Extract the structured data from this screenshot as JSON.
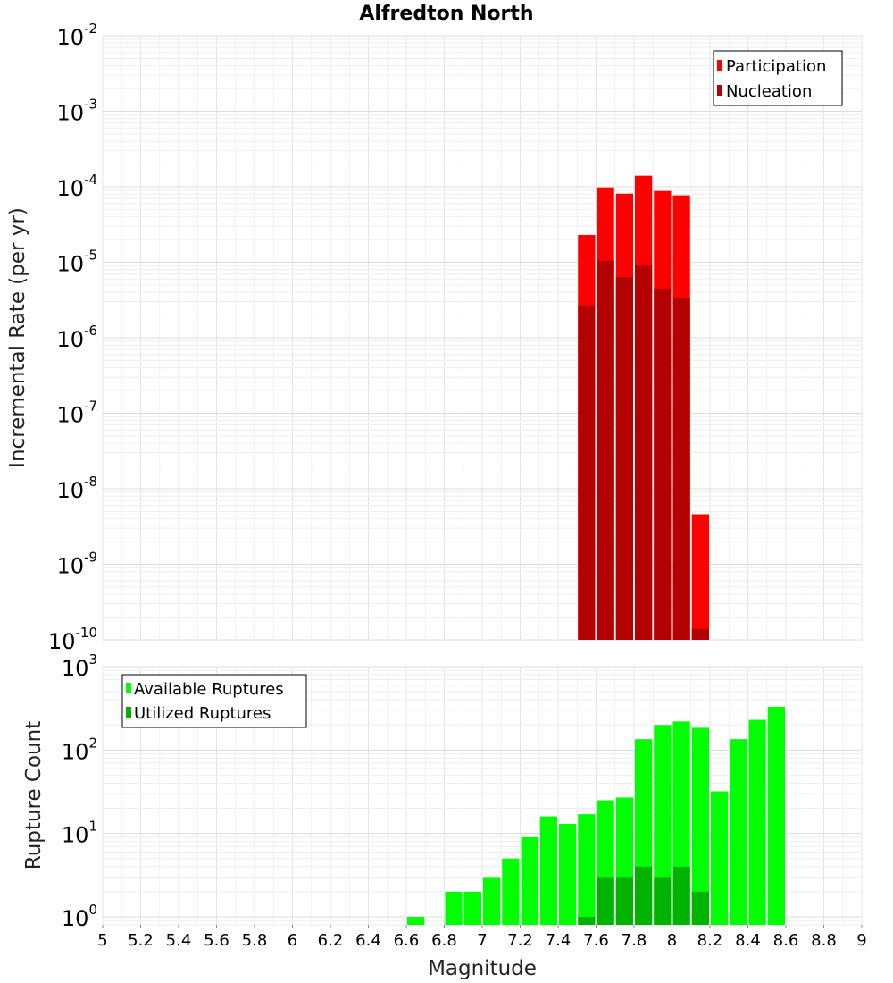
{
  "chart_data": [
    {
      "type": "bar",
      "title": "Alfredton North",
      "xlabel": "",
      "ylabel": "Incremental Rate (per yr)",
      "yscale": "log",
      "ylim": [
        1e-10,
        0.01
      ],
      "xlim": [
        5,
        9
      ],
      "bar_width": 0.1,
      "y_ticks": [
        {
          "base": "10",
          "exp": "-10",
          "value": 1e-10
        },
        {
          "base": "10",
          "exp": "-9",
          "value": 1e-09
        },
        {
          "base": "10",
          "exp": "-8",
          "value": 1e-08
        },
        {
          "base": "10",
          "exp": "-7",
          "value": 1e-07
        },
        {
          "base": "10",
          "exp": "-6",
          "value": 1e-06
        },
        {
          "base": "10",
          "exp": "-5",
          "value": 1e-05
        },
        {
          "base": "10",
          "exp": "-4",
          "value": 0.0001
        },
        {
          "base": "10",
          "exp": "-3",
          "value": 0.001
        },
        {
          "base": "10",
          "exp": "-2",
          "value": 0.01
        }
      ],
      "legend": {
        "position": "top-right",
        "entries": [
          "Participation",
          "Nucleation"
        ]
      },
      "series": [
        {
          "name": "Participation",
          "color": "#ff0000",
          "x": [
            7.55,
            7.65,
            7.75,
            7.85,
            7.95,
            8.05,
            8.15
          ],
          "values": [
            2.3e-05,
            9.8e-05,
            8.1e-05,
            0.00014,
            8.8e-05,
            7.7e-05,
            4.6e-09
          ]
        },
        {
          "name": "Nucleation",
          "color": "#b30000",
          "x": [
            7.55,
            7.65,
            7.75,
            7.85,
            7.95,
            8.05,
            8.15
          ],
          "values": [
            2.7e-06,
            1.05e-05,
            6.4e-06,
            9.2e-06,
            4.5e-06,
            3.3e-06,
            1.4e-10
          ]
        }
      ]
    },
    {
      "type": "bar",
      "xlabel": "Magnitude",
      "ylabel": "Rupture Count",
      "yscale": "log",
      "ylim": [
        0.8,
        1000
      ],
      "xlim": [
        5,
        9
      ],
      "bar_width": 0.1,
      "x_ticks": [
        "5",
        "5.2",
        "5.4",
        "5.6",
        "5.8",
        "6",
        "6.2",
        "6.4",
        "6.6",
        "6.8",
        "7",
        "7.2",
        "7.4",
        "7.6",
        "7.8",
        "8",
        "8.2",
        "8.4",
        "8.6",
        "8.8",
        "9"
      ],
      "y_ticks": [
        {
          "base": "10",
          "exp": "0",
          "value": 1
        },
        {
          "base": "10",
          "exp": "1",
          "value": 10
        },
        {
          "base": "10",
          "exp": "2",
          "value": 100
        },
        {
          "base": "10",
          "exp": "3",
          "value": 1000
        }
      ],
      "legend": {
        "position": "top-left",
        "entries": [
          "Available Ruptures",
          "Utilized Ruptures"
        ]
      },
      "series": [
        {
          "name": "Available Ruptures",
          "color": "#00ff00",
          "x": [
            6.65,
            6.85,
            6.95,
            7.05,
            7.15,
            7.25,
            7.35,
            7.45,
            7.55,
            7.65,
            7.75,
            7.85,
            7.95,
            8.05,
            8.15,
            8.25,
            8.35,
            8.45,
            8.55
          ],
          "values": [
            1,
            2,
            2,
            3,
            5,
            9,
            16,
            13,
            17,
            25,
            27,
            135,
            200,
            220,
            185,
            32,
            135,
            230,
            330
          ]
        },
        {
          "name": "Utilized Ruptures",
          "color": "#00b300",
          "x": [
            7.55,
            7.65,
            7.75,
            7.85,
            7.95,
            8.05,
            8.15
          ],
          "values": [
            1,
            3,
            3,
            4,
            3,
            4,
            2
          ]
        }
      ]
    }
  ]
}
